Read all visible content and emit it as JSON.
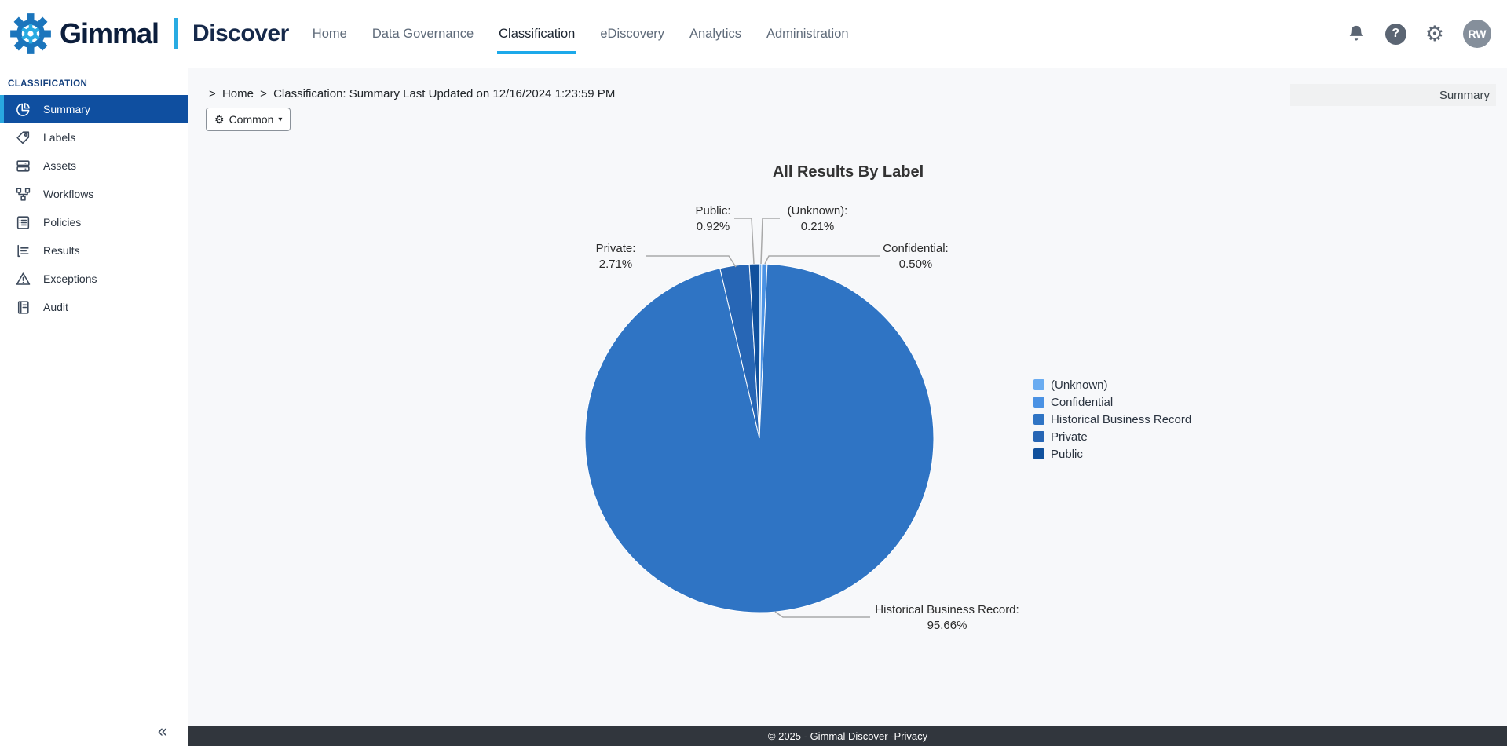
{
  "brand": {
    "name": "Gimmal",
    "product": "Discover"
  },
  "nav": {
    "items": [
      {
        "label": "Home",
        "active": false
      },
      {
        "label": "Data Governance",
        "active": false
      },
      {
        "label": "Classification",
        "active": true
      },
      {
        "label": "eDiscovery",
        "active": false
      },
      {
        "label": "Analytics",
        "active": false
      },
      {
        "label": "Administration",
        "active": false
      }
    ]
  },
  "header": {
    "help_glyph": "?",
    "avatar_initials": "RW"
  },
  "icons": {
    "settings_gear": "⚙",
    "settings_small": "⚙",
    "caret_down": "▾",
    "collapse": "«",
    "breadcrumb_sep": ">"
  },
  "sidebar": {
    "section": "CLASSIFICATION",
    "items": [
      {
        "label": "Summary",
        "icon": "pie-chart",
        "active": true
      },
      {
        "label": "Labels",
        "icon": "tag",
        "active": false
      },
      {
        "label": "Assets",
        "icon": "server-stack",
        "active": false
      },
      {
        "label": "Workflows",
        "icon": "workflow-nodes",
        "active": false
      },
      {
        "label": "Policies",
        "icon": "policy-list",
        "active": false
      },
      {
        "label": "Results",
        "icon": "result-lines",
        "active": false
      },
      {
        "label": "Exceptions",
        "icon": "warning-triangle",
        "active": false
      },
      {
        "label": "Audit",
        "icon": "audit-document",
        "active": false
      }
    ]
  },
  "breadcrumb": {
    "home": "Home",
    "text": "Classification: Summary Last Updated on 12/16/2024 1:23:59 PM",
    "right_label": "Summary"
  },
  "toolbar": {
    "common_label": "Common"
  },
  "chart_data": {
    "type": "pie",
    "title": "All Results By Label",
    "value_unit": "%",
    "start_angle_deg": 0,
    "direction": "clockwise",
    "legend_position": "right",
    "slices": [
      {
        "label": "(Unknown)",
        "value": 0.21,
        "color": "#6aacf1"
      },
      {
        "label": "Confidential",
        "value": 0.5,
        "color": "#4a92e4"
      },
      {
        "label": "Historical Business Record",
        "value": 95.66,
        "color": "#2f74c4"
      },
      {
        "label": "Private",
        "value": 2.71,
        "color": "#2766b5"
      },
      {
        "label": "Public",
        "value": 0.92,
        "color": "#11519d"
      }
    ]
  },
  "footer": {
    "copyright": "© 2025 - Gimmal Discover - ",
    "privacy_label": "Privacy"
  },
  "colors": {
    "accent": "#29abe2",
    "nav_active_underline": "#1ca9ea",
    "sidebar_active_bg": "#0f4fa0",
    "sidebar_active_strip": "#29a8e0",
    "footer_bg": "#31363d",
    "content_bg": "#f7f8fa",
    "pie_main": "#2f74c4"
  }
}
